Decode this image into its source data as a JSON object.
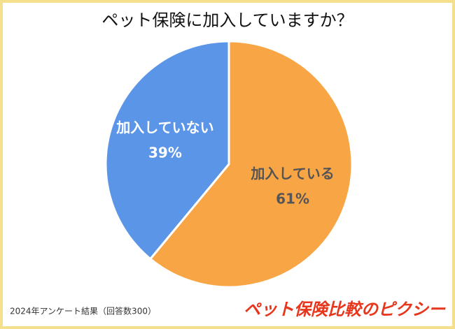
{
  "chart_data": {
    "type": "pie",
    "title": "ペット保険に加入していますか？",
    "categories": [
      "加入している",
      "加入していない"
    ],
    "values": [
      61,
      39
    ],
    "value_labels": [
      "61%",
      "39%"
    ],
    "colors": [
      "#f8a546",
      "#5b95e8"
    ],
    "label_colors": [
      "#555555",
      "#ffffff"
    ]
  },
  "footnote": "2024年アンケート結果（回答数300）",
  "logo": "ペット保険比較のピクシー"
}
